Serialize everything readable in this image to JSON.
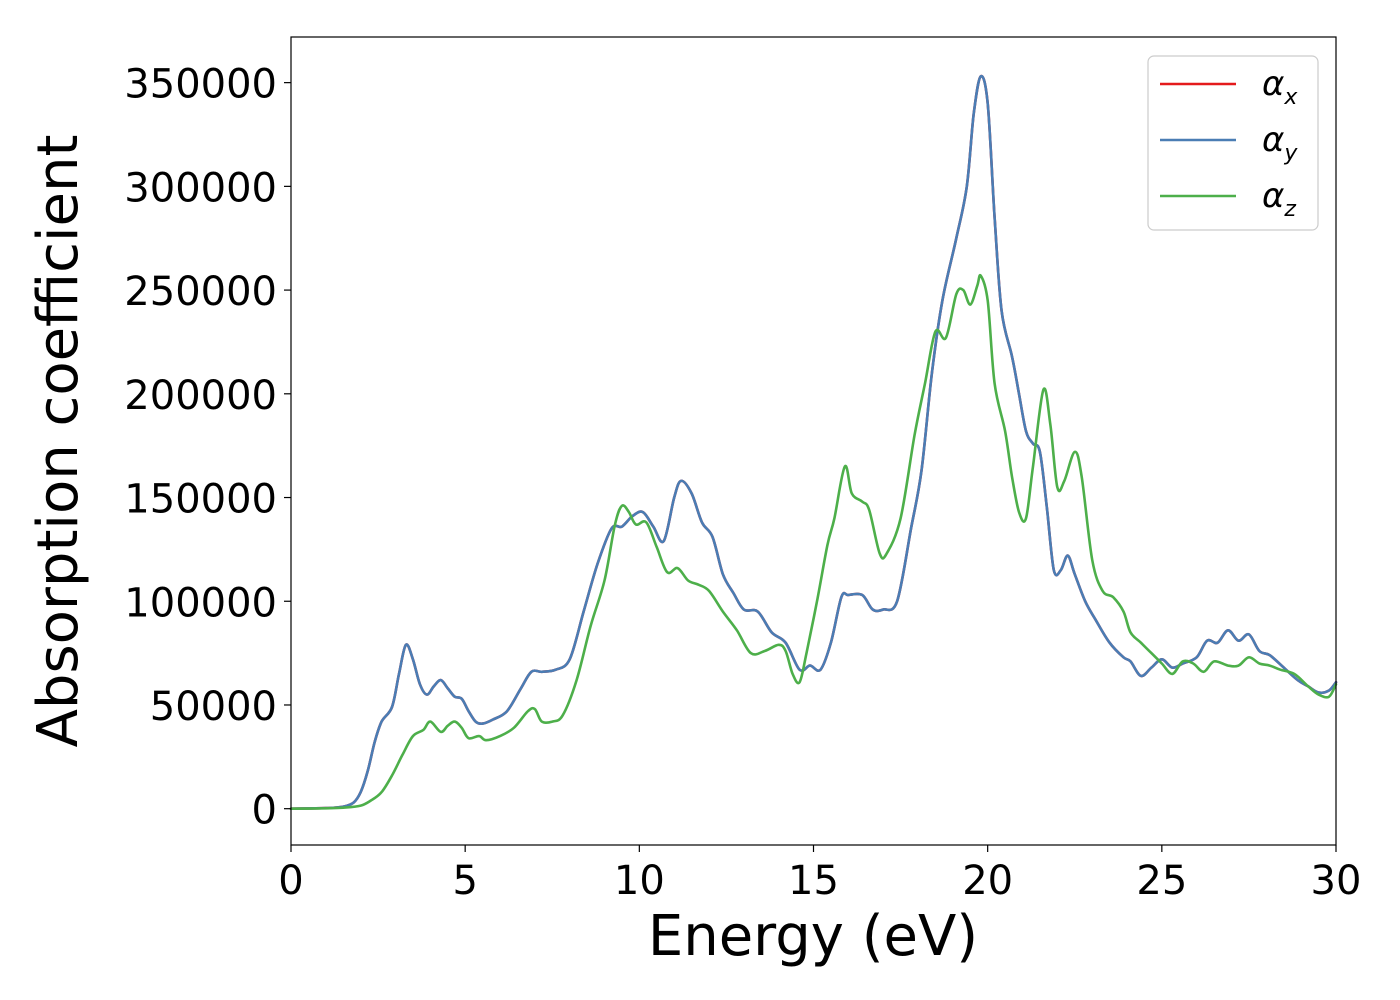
{
  "chart_data": {
    "type": "line",
    "title": "",
    "xlabel": "Energy (eV)",
    "ylabel": "Absorption coefficient",
    "xlim": [
      0,
      30
    ],
    "ylim": [
      -17500,
      372000
    ],
    "xticks": [
      "0",
      "5",
      "10",
      "15",
      "20",
      "25",
      "30"
    ],
    "yticks": [
      "0",
      "50000",
      "100000",
      "150000",
      "200000",
      "250000",
      "300000",
      "350000"
    ],
    "grid": false,
    "legend_position": "top-right",
    "series": [
      {
        "name": "α_x",
        "label_main": "α",
        "label_sub": "x",
        "color": "#e41a1c",
        "points": [
          [
            0,
            0
          ],
          [
            1,
            300
          ],
          [
            1.5,
            1000
          ],
          [
            1.8,
            3000
          ],
          [
            2.0,
            8000
          ],
          [
            2.2,
            18000
          ],
          [
            2.4,
            32000
          ],
          [
            2.6,
            42000
          ],
          [
            2.9,
            49000
          ],
          [
            3.1,
            65000
          ],
          [
            3.3,
            79000
          ],
          [
            3.5,
            72000
          ],
          [
            3.7,
            60000
          ],
          [
            3.9,
            55000
          ],
          [
            4.1,
            59000
          ],
          [
            4.3,
            62000
          ],
          [
            4.5,
            58000
          ],
          [
            4.7,
            54000
          ],
          [
            4.9,
            53000
          ],
          [
            5.1,
            47000
          ],
          [
            5.3,
            42000
          ],
          [
            5.5,
            41000
          ],
          [
            5.8,
            43000
          ],
          [
            6.2,
            47000
          ],
          [
            6.6,
            58000
          ],
          [
            6.9,
            66000
          ],
          [
            7.2,
            66000
          ],
          [
            7.6,
            67000
          ],
          [
            8.0,
            72000
          ],
          [
            8.4,
            95000
          ],
          [
            8.8,
            118000
          ],
          [
            9.2,
            135000
          ],
          [
            9.5,
            136000
          ],
          [
            9.8,
            141000
          ],
          [
            10.1,
            143000
          ],
          [
            10.4,
            136000
          ],
          [
            10.7,
            129000
          ],
          [
            11.0,
            150000
          ],
          [
            11.2,
            158000
          ],
          [
            11.5,
            152000
          ],
          [
            11.8,
            138000
          ],
          [
            12.1,
            131000
          ],
          [
            12.4,
            113000
          ],
          [
            12.7,
            104000
          ],
          [
            13.0,
            96000
          ],
          [
            13.4,
            95000
          ],
          [
            13.8,
            85000
          ],
          [
            14.2,
            80000
          ],
          [
            14.6,
            67000
          ],
          [
            14.9,
            69000
          ],
          [
            15.2,
            67000
          ],
          [
            15.5,
            80000
          ],
          [
            15.8,
            102000
          ],
          [
            16.0,
            103000
          ],
          [
            16.4,
            103000
          ],
          [
            16.7,
            96000
          ],
          [
            17.0,
            96000
          ],
          [
            17.4,
            100000
          ],
          [
            17.8,
            135000
          ],
          [
            18.1,
            163000
          ],
          [
            18.4,
            210000
          ],
          [
            18.7,
            245000
          ],
          [
            19.1,
            275000
          ],
          [
            19.4,
            300000
          ],
          [
            19.6,
            335000
          ],
          [
            19.8,
            353000
          ],
          [
            20.0,
            340000
          ],
          [
            20.2,
            285000
          ],
          [
            20.4,
            240000
          ],
          [
            20.7,
            218000
          ],
          [
            20.9,
            200000
          ],
          [
            21.1,
            182000
          ],
          [
            21.3,
            176000
          ],
          [
            21.5,
            172000
          ],
          [
            21.7,
            145000
          ],
          [
            21.9,
            115000
          ],
          [
            22.1,
            115000
          ],
          [
            22.3,
            122000
          ],
          [
            22.5,
            113000
          ],
          [
            22.8,
            100000
          ],
          [
            23.1,
            91000
          ],
          [
            23.5,
            80000
          ],
          [
            23.9,
            73000
          ],
          [
            24.1,
            71000
          ],
          [
            24.4,
            64000
          ],
          [
            24.7,
            68000
          ],
          [
            25.0,
            72000
          ],
          [
            25.3,
            68000
          ],
          [
            25.6,
            70000
          ],
          [
            26.0,
            73000
          ],
          [
            26.3,
            81000
          ],
          [
            26.6,
            80000
          ],
          [
            26.9,
            86000
          ],
          [
            27.2,
            81000
          ],
          [
            27.5,
            84000
          ],
          [
            27.8,
            76000
          ],
          [
            28.1,
            74000
          ],
          [
            28.5,
            68000
          ],
          [
            28.9,
            62000
          ],
          [
            29.2,
            59000
          ],
          [
            29.5,
            56000
          ],
          [
            29.8,
            57000
          ],
          [
            30.0,
            61000
          ]
        ]
      },
      {
        "name": "α_y",
        "label_main": "α",
        "label_sub": "y",
        "color": "#4a7db4",
        "points": [
          [
            0,
            0
          ],
          [
            1,
            300
          ],
          [
            1.5,
            1000
          ],
          [
            1.8,
            3000
          ],
          [
            2.0,
            8000
          ],
          [
            2.2,
            18000
          ],
          [
            2.4,
            32000
          ],
          [
            2.6,
            42000
          ],
          [
            2.9,
            49000
          ],
          [
            3.1,
            65000
          ],
          [
            3.3,
            79000
          ],
          [
            3.5,
            72000
          ],
          [
            3.7,
            60000
          ],
          [
            3.9,
            55000
          ],
          [
            4.1,
            59000
          ],
          [
            4.3,
            62000
          ],
          [
            4.5,
            58000
          ],
          [
            4.7,
            54000
          ],
          [
            4.9,
            53000
          ],
          [
            5.1,
            47000
          ],
          [
            5.3,
            42000
          ],
          [
            5.5,
            41000
          ],
          [
            5.8,
            43000
          ],
          [
            6.2,
            47000
          ],
          [
            6.6,
            58000
          ],
          [
            6.9,
            66000
          ],
          [
            7.2,
            66000
          ],
          [
            7.6,
            67000
          ],
          [
            8.0,
            72000
          ],
          [
            8.4,
            95000
          ],
          [
            8.8,
            118000
          ],
          [
            9.2,
            135000
          ],
          [
            9.5,
            136000
          ],
          [
            9.8,
            141000
          ],
          [
            10.1,
            143000
          ],
          [
            10.4,
            136000
          ],
          [
            10.7,
            129000
          ],
          [
            11.0,
            150000
          ],
          [
            11.2,
            158000
          ],
          [
            11.5,
            152000
          ],
          [
            11.8,
            138000
          ],
          [
            12.1,
            131000
          ],
          [
            12.4,
            113000
          ],
          [
            12.7,
            104000
          ],
          [
            13.0,
            96000
          ],
          [
            13.4,
            95000
          ],
          [
            13.8,
            85000
          ],
          [
            14.2,
            80000
          ],
          [
            14.6,
            67000
          ],
          [
            14.9,
            69000
          ],
          [
            15.2,
            67000
          ],
          [
            15.5,
            80000
          ],
          [
            15.8,
            102000
          ],
          [
            16.0,
            103000
          ],
          [
            16.4,
            103000
          ],
          [
            16.7,
            96000
          ],
          [
            17.0,
            96000
          ],
          [
            17.4,
            100000
          ],
          [
            17.8,
            135000
          ],
          [
            18.1,
            163000
          ],
          [
            18.4,
            210000
          ],
          [
            18.7,
            245000
          ],
          [
            19.1,
            275000
          ],
          [
            19.4,
            300000
          ],
          [
            19.6,
            335000
          ],
          [
            19.8,
            353000
          ],
          [
            20.0,
            340000
          ],
          [
            20.2,
            285000
          ],
          [
            20.4,
            240000
          ],
          [
            20.7,
            218000
          ],
          [
            20.9,
            200000
          ],
          [
            21.1,
            182000
          ],
          [
            21.3,
            176000
          ],
          [
            21.5,
            172000
          ],
          [
            21.7,
            145000
          ],
          [
            21.9,
            115000
          ],
          [
            22.1,
            115000
          ],
          [
            22.3,
            122000
          ],
          [
            22.5,
            113000
          ],
          [
            22.8,
            100000
          ],
          [
            23.1,
            91000
          ],
          [
            23.5,
            80000
          ],
          [
            23.9,
            73000
          ],
          [
            24.1,
            71000
          ],
          [
            24.4,
            64000
          ],
          [
            24.7,
            68000
          ],
          [
            25.0,
            72000
          ],
          [
            25.3,
            68000
          ],
          [
            25.6,
            70000
          ],
          [
            26.0,
            73000
          ],
          [
            26.3,
            81000
          ],
          [
            26.6,
            80000
          ],
          [
            26.9,
            86000
          ],
          [
            27.2,
            81000
          ],
          [
            27.5,
            84000
          ],
          [
            27.8,
            76000
          ],
          [
            28.1,
            74000
          ],
          [
            28.5,
            68000
          ],
          [
            28.9,
            62000
          ],
          [
            29.2,
            59000
          ],
          [
            29.5,
            56000
          ],
          [
            29.8,
            57000
          ],
          [
            30.0,
            61000
          ]
        ]
      },
      {
        "name": "α_z",
        "label_main": "α",
        "label_sub": "z",
        "color": "#4daf4a",
        "points": [
          [
            0,
            0
          ],
          [
            1,
            200
          ],
          [
            1.5,
            500
          ],
          [
            2.0,
            1500
          ],
          [
            2.3,
            4000
          ],
          [
            2.6,
            8000
          ],
          [
            2.9,
            16000
          ],
          [
            3.2,
            26000
          ],
          [
            3.5,
            35000
          ],
          [
            3.8,
            38000
          ],
          [
            4.0,
            42000
          ],
          [
            4.3,
            37000
          ],
          [
            4.5,
            40000
          ],
          [
            4.7,
            42000
          ],
          [
            4.9,
            39000
          ],
          [
            5.1,
            34000
          ],
          [
            5.4,
            35000
          ],
          [
            5.6,
            33000
          ],
          [
            6.0,
            35000
          ],
          [
            6.4,
            39000
          ],
          [
            6.8,
            47000
          ],
          [
            7.0,
            48000
          ],
          [
            7.2,
            42000
          ],
          [
            7.5,
            42000
          ],
          [
            7.8,
            45000
          ],
          [
            8.2,
            62000
          ],
          [
            8.6,
            88000
          ],
          [
            9.0,
            110000
          ],
          [
            9.3,
            137000
          ],
          [
            9.5,
            146000
          ],
          [
            9.7,
            143000
          ],
          [
            9.9,
            137000
          ],
          [
            10.2,
            138000
          ],
          [
            10.5,
            126000
          ],
          [
            10.8,
            114000
          ],
          [
            11.1,
            116000
          ],
          [
            11.4,
            110000
          ],
          [
            11.7,
            108000
          ],
          [
            12.0,
            105000
          ],
          [
            12.4,
            95000
          ],
          [
            12.8,
            86000
          ],
          [
            13.2,
            75000
          ],
          [
            13.6,
            76000
          ],
          [
            14.0,
            79000
          ],
          [
            14.2,
            76000
          ],
          [
            14.4,
            65000
          ],
          [
            14.6,
            61000
          ],
          [
            14.8,
            75000
          ],
          [
            15.1,
            100000
          ],
          [
            15.4,
            127000
          ],
          [
            15.6,
            140000
          ],
          [
            15.9,
            165000
          ],
          [
            16.1,
            152000
          ],
          [
            16.4,
            148000
          ],
          [
            16.6,
            144000
          ],
          [
            16.9,
            123000
          ],
          [
            17.1,
            123000
          ],
          [
            17.5,
            140000
          ],
          [
            17.9,
            180000
          ],
          [
            18.2,
            205000
          ],
          [
            18.5,
            230000
          ],
          [
            18.8,
            227000
          ],
          [
            19.1,
            248000
          ],
          [
            19.3,
            250000
          ],
          [
            19.5,
            243000
          ],
          [
            19.7,
            252000
          ],
          [
            19.8,
            257000
          ],
          [
            20.0,
            245000
          ],
          [
            20.2,
            205000
          ],
          [
            20.5,
            182000
          ],
          [
            20.7,
            160000
          ],
          [
            20.9,
            143000
          ],
          [
            21.1,
            140000
          ],
          [
            21.3,
            165000
          ],
          [
            21.6,
            202000
          ],
          [
            21.8,
            185000
          ],
          [
            22.0,
            155000
          ],
          [
            22.2,
            158000
          ],
          [
            22.5,
            172000
          ],
          [
            22.7,
            160000
          ],
          [
            23.0,
            120000
          ],
          [
            23.3,
            105000
          ],
          [
            23.6,
            102000
          ],
          [
            23.9,
            95000
          ],
          [
            24.1,
            85000
          ],
          [
            24.4,
            80000
          ],
          [
            24.7,
            75000
          ],
          [
            25.0,
            70000
          ],
          [
            25.3,
            65000
          ],
          [
            25.6,
            71000
          ],
          [
            25.9,
            70000
          ],
          [
            26.2,
            66000
          ],
          [
            26.5,
            71000
          ],
          [
            26.9,
            69000
          ],
          [
            27.2,
            69000
          ],
          [
            27.5,
            73000
          ],
          [
            27.8,
            70000
          ],
          [
            28.1,
            69000
          ],
          [
            28.4,
            67000
          ],
          [
            28.8,
            65000
          ],
          [
            29.2,
            59000
          ],
          [
            29.5,
            55000
          ],
          [
            29.8,
            54000
          ],
          [
            30.0,
            60000
          ]
        ]
      }
    ]
  }
}
